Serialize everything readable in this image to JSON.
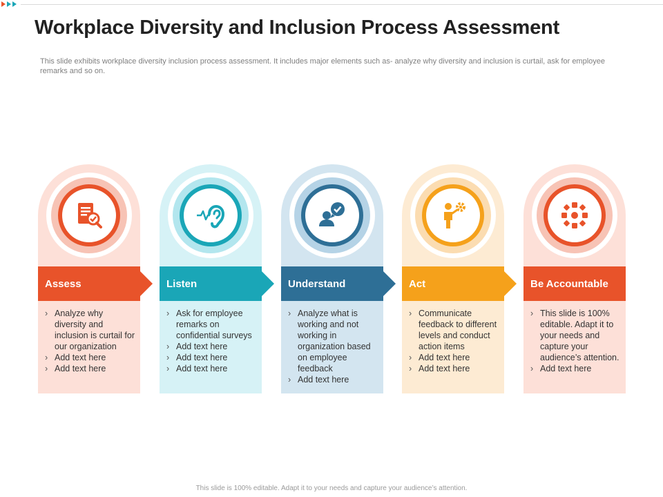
{
  "header": {
    "title": "Workplace Diversity and Inclusion Process Assessment",
    "subtitle": "This slide exhibits workplace diversity inclusion process assessment. It includes major elements such as- analyze why diversity and inclusion is curtail, ask for employee remarks and so on."
  },
  "footer": {
    "text": "This slide is 100% editable.  Adapt it to your needs and capture your audience’s attention."
  },
  "steps": [
    {
      "label": "Assess",
      "icon": "document-checklist-icon",
      "color": "#e8532a",
      "light": "#fde0d8",
      "mid": "#f7c3b5",
      "bullets": [
        "Analyze why diversity and inclusion is curtail for our organization",
        "Add text here",
        "Add text here"
      ]
    },
    {
      "label": "Listen",
      "icon": "ear-listening-icon",
      "color": "#1aa6b7",
      "light": "#d6f2f6",
      "mid": "#b3e6ee",
      "bullets": [
        "Ask for employee remarks on confidential surveys",
        "Add text here",
        "Add text here",
        "Add text here"
      ]
    },
    {
      "label": "Understand",
      "icon": "user-speech-check-icon",
      "color": "#2e6f96",
      "light": "#d3e5f0",
      "mid": "#b5d3e6",
      "bullets": [
        "Analyze what is working and not working in organization based on employee feedback",
        "Add text here"
      ]
    },
    {
      "label": "Act",
      "icon": "person-gear-icon",
      "color": "#f5a11b",
      "light": "#fdebd3",
      "mid": "#fbdcb1",
      "bullets": [
        "Communicate feedback to different levels and conduct action items",
        "Add text here",
        "Add text here"
      ]
    },
    {
      "label": "Be Accountable",
      "icon": "team-network-icon",
      "color": "#e8532a",
      "light": "#fde0d8",
      "mid": "#f7c3b5",
      "bullets": [
        "This slide is 100% editable. Adapt it to your needs and capture your audience’s attention.",
        "Add text here"
      ]
    }
  ]
}
